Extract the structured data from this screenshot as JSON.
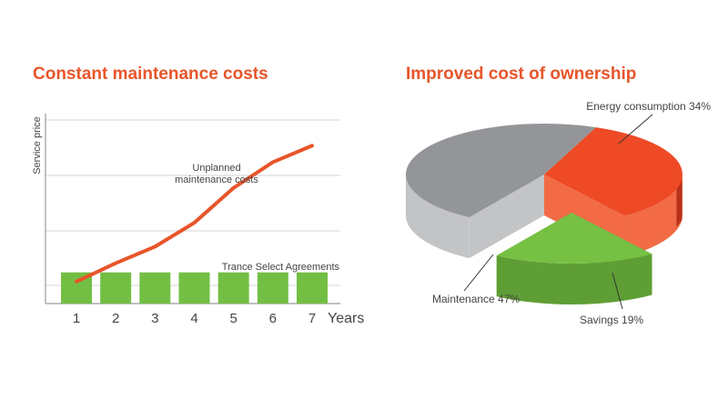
{
  "colors": {
    "title": "#e8552a",
    "line": "#e8552a",
    "bar": "#73bf44",
    "axis": "#9a9a9a",
    "grid": "#d4d4d4",
    "text": "#444444",
    "pie_energy_top": "#ee4a26",
    "pie_energy_side": "#f26b45",
    "pie_energy_dark": "#b8321a",
    "pie_maintenance_top": "#939598",
    "pie_maintenance_side": "#c3c4c6",
    "pie_savings_top": "#76c043",
    "pie_savings_side": "#5f9e35"
  },
  "chart_data": [
    {
      "type": "line",
      "title": "Constant maintenance costs",
      "xlabel": "Years",
      "ylabel": "Service price",
      "x": [
        1,
        2,
        3,
        4,
        5,
        6,
        7
      ],
      "xlim": [
        0.5,
        7.5
      ],
      "ylim": [
        0,
        100
      ],
      "grid": true,
      "series": [
        {
          "name": "Unplanned maintenance costs",
          "type": "line",
          "values": [
            12,
            22,
            31,
            44,
            63,
            77,
            86
          ]
        },
        {
          "name": "Trance Select Agreements",
          "type": "bar",
          "values": [
            17,
            17,
            17,
            17,
            17,
            17,
            17
          ]
        }
      ],
      "annotations": {
        "line_label_1": "Unplanned",
        "line_label_2": "maintenance costs",
        "bar_label": "Trance Select Agreements"
      }
    },
    {
      "type": "pie",
      "title": "Improved cost of ownership",
      "slices": [
        {
          "name": "Energy consumption",
          "value": 34,
          "label": "Energy consumption 34%"
        },
        {
          "name": "Savings",
          "value": 19,
          "label": "Savings 19%",
          "exploded": true
        },
        {
          "name": "Maintenance",
          "value": 47,
          "label": "Maintenance 47%"
        }
      ]
    }
  ]
}
